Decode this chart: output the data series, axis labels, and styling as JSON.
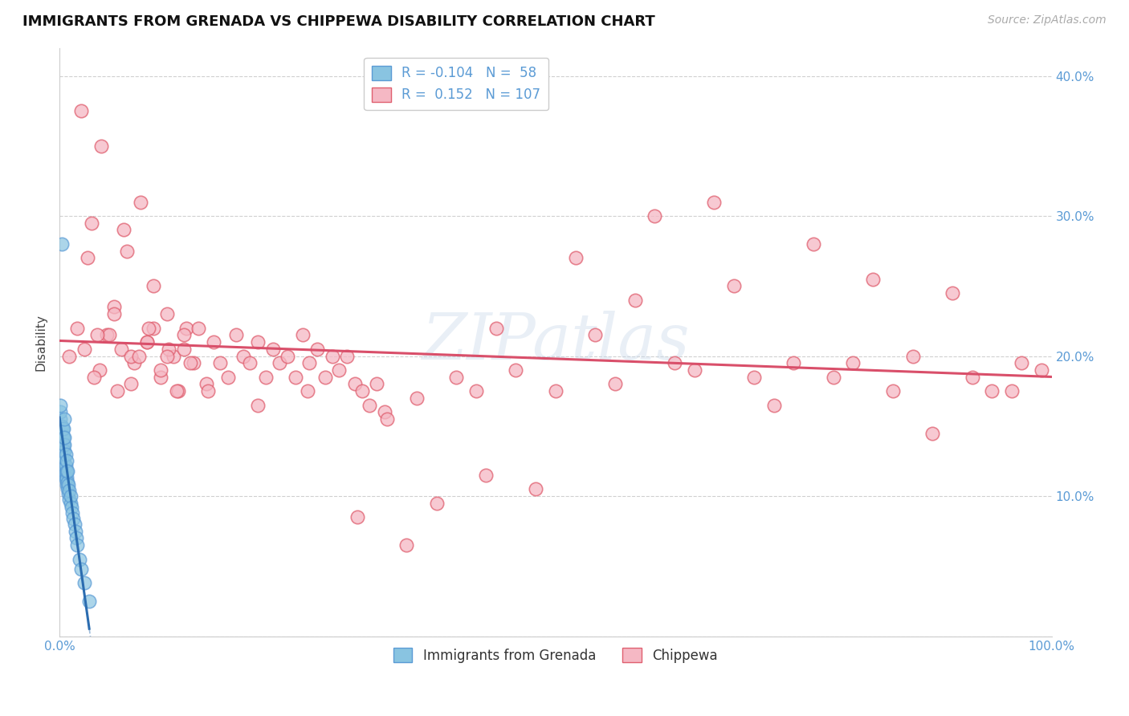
{
  "title": "IMMIGRANTS FROM GRENADA VS CHIPPEWA DISABILITY CORRELATION CHART",
  "source_text": "Source: ZipAtlas.com",
  "ylabel": "Disability",
  "xlim": [
    0.0,
    1.0
  ],
  "ylim": [
    0.0,
    0.42
  ],
  "xticks": [
    0.0,
    0.1,
    0.2,
    0.3,
    0.4,
    0.5,
    0.6,
    0.7,
    0.8,
    0.9,
    1.0
  ],
  "xticklabels": [
    "0.0%",
    "",
    "",
    "",
    "",
    "",
    "",
    "",
    "",
    "",
    "100.0%"
  ],
  "yticks_right": [
    0.1,
    0.2,
    0.3,
    0.4
  ],
  "yticklabels_right": [
    "10.0%",
    "20.0%",
    "30.0%",
    "40.0%"
  ],
  "grenada_color": "#89c4e1",
  "chippewa_color": "#f5b8c4",
  "grenada_edge_color": "#5b9bd5",
  "chippewa_edge_color": "#e06070",
  "grenada_line_color": "#2b6cb0",
  "chippewa_line_color": "#d94f6a",
  "background_color": "#ffffff",
  "watermark": "ZIPatlas",
  "title_fontsize": 13,
  "axis_tick_color": "#5b9bd5",
  "grid_color": "#d0d0d0",
  "legend_label_grenada": "R = -0.104   N =  58",
  "legend_label_chippewa": "R =  0.152   N = 107",
  "bottom_label_grenada": "Immigrants from Grenada",
  "bottom_label_chippewa": "Chippewa",
  "grenada_points_x": [
    0.001,
    0.001,
    0.001,
    0.002,
    0.002,
    0.002,
    0.002,
    0.002,
    0.003,
    0.003,
    0.003,
    0.003,
    0.003,
    0.003,
    0.004,
    0.004,
    0.004,
    0.004,
    0.004,
    0.004,
    0.004,
    0.005,
    0.005,
    0.005,
    0.005,
    0.005,
    0.005,
    0.005,
    0.005,
    0.006,
    0.006,
    0.006,
    0.006,
    0.007,
    0.007,
    0.007,
    0.007,
    0.008,
    0.008,
    0.008,
    0.009,
    0.009,
    0.01,
    0.01,
    0.011,
    0.011,
    0.012,
    0.013,
    0.014,
    0.015,
    0.016,
    0.017,
    0.018,
    0.02,
    0.022,
    0.025,
    0.03,
    0.002
  ],
  "grenada_points_y": [
    0.155,
    0.16,
    0.165,
    0.13,
    0.135,
    0.14,
    0.145,
    0.15,
    0.125,
    0.128,
    0.132,
    0.138,
    0.143,
    0.148,
    0.118,
    0.122,
    0.127,
    0.132,
    0.137,
    0.142,
    0.148,
    0.115,
    0.118,
    0.122,
    0.127,
    0.132,
    0.137,
    0.142,
    0.155,
    0.112,
    0.117,
    0.122,
    0.13,
    0.108,
    0.113,
    0.118,
    0.125,
    0.105,
    0.11,
    0.118,
    0.102,
    0.108,
    0.098,
    0.104,
    0.095,
    0.1,
    0.092,
    0.088,
    0.084,
    0.08,
    0.075,
    0.07,
    0.065,
    0.055,
    0.048,
    0.038,
    0.025,
    0.28
  ],
  "chippewa_points_x": [
    0.01,
    0.018,
    0.025,
    0.032,
    0.04,
    0.048,
    0.055,
    0.062,
    0.068,
    0.075,
    0.082,
    0.088,
    0.095,
    0.102,
    0.108,
    0.115,
    0.12,
    0.128,
    0.135,
    0.028,
    0.035,
    0.042,
    0.05,
    0.058,
    0.065,
    0.072,
    0.08,
    0.088,
    0.095,
    0.102,
    0.11,
    0.118,
    0.125,
    0.132,
    0.14,
    0.148,
    0.155,
    0.162,
    0.17,
    0.178,
    0.185,
    0.192,
    0.2,
    0.208,
    0.215,
    0.222,
    0.23,
    0.238,
    0.245,
    0.252,
    0.26,
    0.268,
    0.275,
    0.282,
    0.29,
    0.298,
    0.305,
    0.312,
    0.32,
    0.328,
    0.44,
    0.46,
    0.5,
    0.54,
    0.58,
    0.62,
    0.66,
    0.7,
    0.74,
    0.78,
    0.82,
    0.86,
    0.9,
    0.94,
    0.97,
    0.99,
    0.38,
    0.42,
    0.48,
    0.52,
    0.56,
    0.6,
    0.64,
    0.68,
    0.72,
    0.76,
    0.8,
    0.84,
    0.88,
    0.92,
    0.96,
    0.35,
    0.15,
    0.2,
    0.25,
    0.3,
    0.33,
    0.36,
    0.4,
    0.43,
    0.022,
    0.038,
    0.055,
    0.072,
    0.09,
    0.108,
    0.125
  ],
  "chippewa_points_y": [
    0.2,
    0.22,
    0.205,
    0.295,
    0.19,
    0.215,
    0.235,
    0.205,
    0.275,
    0.195,
    0.31,
    0.21,
    0.25,
    0.185,
    0.23,
    0.2,
    0.175,
    0.22,
    0.195,
    0.27,
    0.185,
    0.35,
    0.215,
    0.175,
    0.29,
    0.2,
    0.2,
    0.21,
    0.22,
    0.19,
    0.205,
    0.175,
    0.215,
    0.195,
    0.22,
    0.18,
    0.21,
    0.195,
    0.185,
    0.215,
    0.2,
    0.195,
    0.21,
    0.185,
    0.205,
    0.195,
    0.2,
    0.185,
    0.215,
    0.195,
    0.205,
    0.185,
    0.2,
    0.19,
    0.2,
    0.18,
    0.175,
    0.165,
    0.18,
    0.16,
    0.22,
    0.19,
    0.175,
    0.215,
    0.24,
    0.195,
    0.31,
    0.185,
    0.195,
    0.185,
    0.255,
    0.2,
    0.245,
    0.175,
    0.195,
    0.19,
    0.095,
    0.175,
    0.105,
    0.27,
    0.18,
    0.3,
    0.19,
    0.25,
    0.165,
    0.28,
    0.195,
    0.175,
    0.145,
    0.185,
    0.175,
    0.065,
    0.175,
    0.165,
    0.175,
    0.085,
    0.155,
    0.17,
    0.185,
    0.115,
    0.375,
    0.215,
    0.23,
    0.18,
    0.22,
    0.2,
    0.205
  ]
}
